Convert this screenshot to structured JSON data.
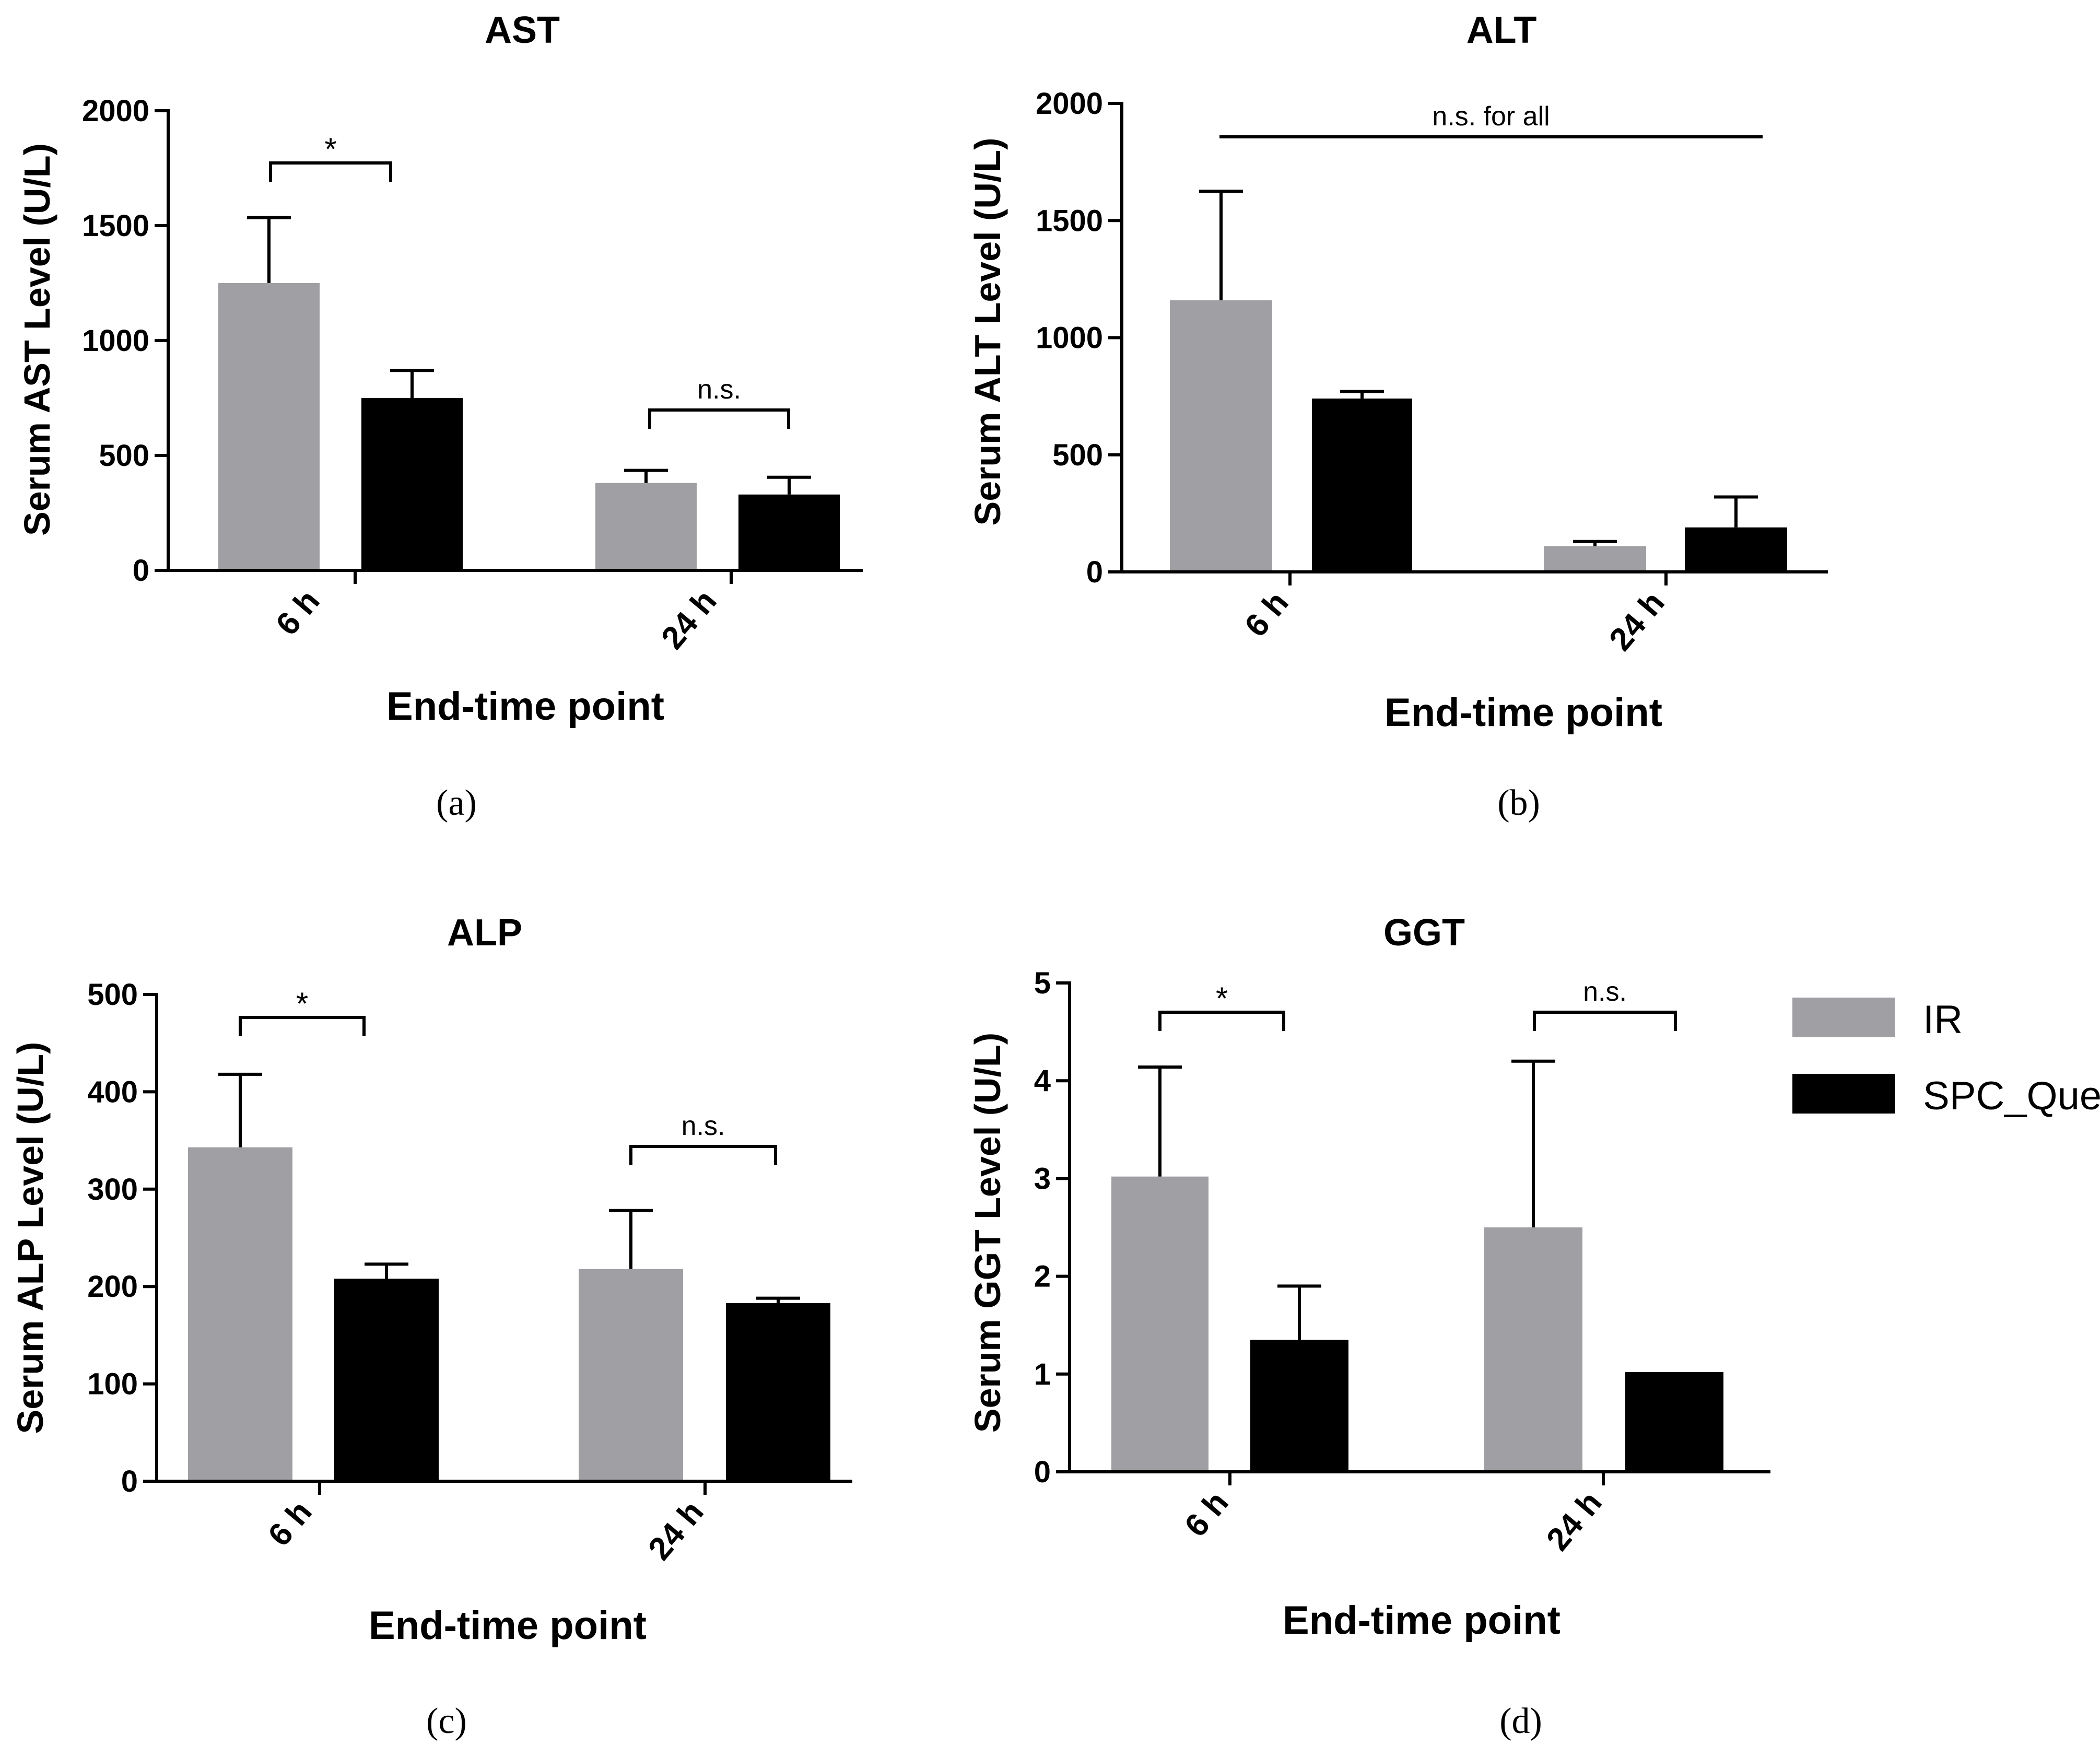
{
  "legend": {
    "entries": [
      {
        "name": "IR",
        "color": "#a0a0a4"
      },
      {
        "name": "SPC_Querc",
        "color": "#000000"
      }
    ]
  },
  "chart_data": [
    {
      "type": "bar",
      "panel": "(a)",
      "title": "AST",
      "ylabel": "Serum AST Level (U/L)",
      "xlabel": "End-time point",
      "categories": [
        "6 h",
        "24 h"
      ],
      "yticks": [
        0,
        500,
        1000,
        1500,
        2000
      ],
      "ylim": [
        0,
        2000
      ],
      "series": [
        {
          "name": "IR",
          "values": [
            1250,
            380
          ],
          "error": [
            285,
            55
          ]
        },
        {
          "name": "SPC_Querc",
          "values": [
            750,
            330
          ],
          "error": [
            120,
            75
          ]
        }
      ],
      "annotations": [
        {
          "category": "6 h",
          "text": "*",
          "y": 1780
        },
        {
          "category": "24 h",
          "text": "n.s.",
          "y": 710
        }
      ]
    },
    {
      "type": "bar",
      "panel": "(b)",
      "title": "ALT",
      "ylabel": "Serum ALT Level (U/L)",
      "xlabel": "End-time point",
      "categories": [
        "6 h",
        "24 h"
      ],
      "yticks": [
        0,
        500,
        1000,
        1500,
        2000
      ],
      "ylim": [
        0,
        2000
      ],
      "series": [
        {
          "name": "IR",
          "values": [
            1160,
            110
          ],
          "error": [
            465,
            20
          ]
        },
        {
          "name": "SPC_Querc",
          "values": [
            740,
            190
          ],
          "error": [
            30,
            130
          ]
        }
      ],
      "annotations": [
        {
          "category": "all",
          "text": "n.s. for all",
          "y": 1860
        }
      ]
    },
    {
      "type": "bar",
      "panel": "(c)",
      "title": "ALP",
      "ylabel": "Serum ALP Level (U/L)",
      "xlabel": "End-time point",
      "categories": [
        "6 h",
        "24 h"
      ],
      "yticks": [
        0,
        100,
        200,
        300,
        400,
        500
      ],
      "ylim": [
        0,
        500
      ],
      "series": [
        {
          "name": "IR",
          "values": [
            343,
            218
          ],
          "error": [
            75,
            60
          ]
        },
        {
          "name": "SPC_Querc",
          "values": [
            208,
            183
          ],
          "error": [
            15,
            5
          ]
        }
      ],
      "annotations": [
        {
          "category": "6 h",
          "text": "*",
          "y": 475
        },
        {
          "category": "24 h",
          "text": "n.s.",
          "y": 340
        }
      ]
    },
    {
      "type": "bar",
      "panel": "(d)",
      "title": "GGT",
      "ylabel": "Serum GGT Level (U/L)",
      "xlabel": "End-time point",
      "categories": [
        "6 h",
        "24 h"
      ],
      "yticks": [
        0,
        1,
        2,
        3,
        4,
        5
      ],
      "ylim": [
        0,
        5
      ],
      "series": [
        {
          "name": "IR",
          "values": [
            3.02,
            2.5
          ],
          "error": [
            1.12,
            1.7
          ]
        },
        {
          "name": "SPC_Querc",
          "values": [
            1.35,
            1.02
          ],
          "error": [
            0.55,
            0
          ]
        }
      ],
      "annotations": [
        {
          "category": "6 h",
          "text": "*",
          "y": 4.75
        },
        {
          "category": "24 h",
          "text": "n.s.",
          "y": 4.75
        }
      ]
    }
  ]
}
